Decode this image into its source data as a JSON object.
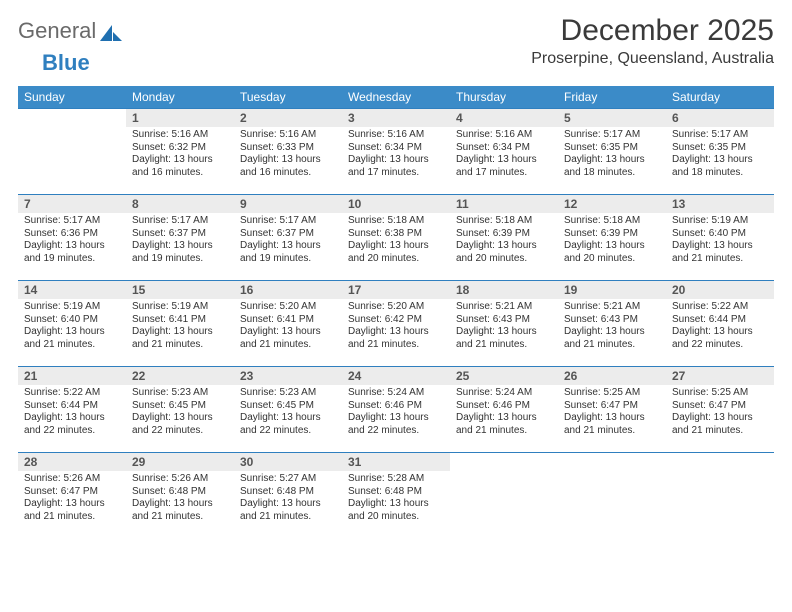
{
  "brand": {
    "general": "General",
    "blue": "Blue"
  },
  "title": {
    "main": "December 2025",
    "sub": "Proserpine, Queensland, Australia"
  },
  "colors": {
    "header_bg": "#3b8bc8",
    "header_text": "#ffffff",
    "cell_border": "#2f7fbf",
    "daynum_bg": "#ececec",
    "text": "#333333",
    "logo_gray": "#6a6a6a",
    "logo_blue": "#2f7fbf",
    "page_bg": "#ffffff"
  },
  "weekdays": [
    "Sunday",
    "Monday",
    "Tuesday",
    "Wednesday",
    "Thursday",
    "Friday",
    "Saturday"
  ],
  "start_offset": 1,
  "cell_text_fontsize": 10,
  "header_fontsize": 12,
  "daynum_fontsize": 12,
  "days": [
    {
      "n": 1,
      "sunrise": "5:16 AM",
      "sunset": "6:32 PM",
      "daylight": "13 hours and 16 minutes."
    },
    {
      "n": 2,
      "sunrise": "5:16 AM",
      "sunset": "6:33 PM",
      "daylight": "13 hours and 16 minutes."
    },
    {
      "n": 3,
      "sunrise": "5:16 AM",
      "sunset": "6:34 PM",
      "daylight": "13 hours and 17 minutes."
    },
    {
      "n": 4,
      "sunrise": "5:16 AM",
      "sunset": "6:34 PM",
      "daylight": "13 hours and 17 minutes."
    },
    {
      "n": 5,
      "sunrise": "5:17 AM",
      "sunset": "6:35 PM",
      "daylight": "13 hours and 18 minutes."
    },
    {
      "n": 6,
      "sunrise": "5:17 AM",
      "sunset": "6:35 PM",
      "daylight": "13 hours and 18 minutes."
    },
    {
      "n": 7,
      "sunrise": "5:17 AM",
      "sunset": "6:36 PM",
      "daylight": "13 hours and 19 minutes."
    },
    {
      "n": 8,
      "sunrise": "5:17 AM",
      "sunset": "6:37 PM",
      "daylight": "13 hours and 19 minutes."
    },
    {
      "n": 9,
      "sunrise": "5:17 AM",
      "sunset": "6:37 PM",
      "daylight": "13 hours and 19 minutes."
    },
    {
      "n": 10,
      "sunrise": "5:18 AM",
      "sunset": "6:38 PM",
      "daylight": "13 hours and 20 minutes."
    },
    {
      "n": 11,
      "sunrise": "5:18 AM",
      "sunset": "6:39 PM",
      "daylight": "13 hours and 20 minutes."
    },
    {
      "n": 12,
      "sunrise": "5:18 AM",
      "sunset": "6:39 PM",
      "daylight": "13 hours and 20 minutes."
    },
    {
      "n": 13,
      "sunrise": "5:19 AM",
      "sunset": "6:40 PM",
      "daylight": "13 hours and 21 minutes."
    },
    {
      "n": 14,
      "sunrise": "5:19 AM",
      "sunset": "6:40 PM",
      "daylight": "13 hours and 21 minutes."
    },
    {
      "n": 15,
      "sunrise": "5:19 AM",
      "sunset": "6:41 PM",
      "daylight": "13 hours and 21 minutes."
    },
    {
      "n": 16,
      "sunrise": "5:20 AM",
      "sunset": "6:41 PM",
      "daylight": "13 hours and 21 minutes."
    },
    {
      "n": 17,
      "sunrise": "5:20 AM",
      "sunset": "6:42 PM",
      "daylight": "13 hours and 21 minutes."
    },
    {
      "n": 18,
      "sunrise": "5:21 AM",
      "sunset": "6:43 PM",
      "daylight": "13 hours and 21 minutes."
    },
    {
      "n": 19,
      "sunrise": "5:21 AM",
      "sunset": "6:43 PM",
      "daylight": "13 hours and 21 minutes."
    },
    {
      "n": 20,
      "sunrise": "5:22 AM",
      "sunset": "6:44 PM",
      "daylight": "13 hours and 22 minutes."
    },
    {
      "n": 21,
      "sunrise": "5:22 AM",
      "sunset": "6:44 PM",
      "daylight": "13 hours and 22 minutes."
    },
    {
      "n": 22,
      "sunrise": "5:23 AM",
      "sunset": "6:45 PM",
      "daylight": "13 hours and 22 minutes."
    },
    {
      "n": 23,
      "sunrise": "5:23 AM",
      "sunset": "6:45 PM",
      "daylight": "13 hours and 22 minutes."
    },
    {
      "n": 24,
      "sunrise": "5:24 AM",
      "sunset": "6:46 PM",
      "daylight": "13 hours and 22 minutes."
    },
    {
      "n": 25,
      "sunrise": "5:24 AM",
      "sunset": "6:46 PM",
      "daylight": "13 hours and 21 minutes."
    },
    {
      "n": 26,
      "sunrise": "5:25 AM",
      "sunset": "6:47 PM",
      "daylight": "13 hours and 21 minutes."
    },
    {
      "n": 27,
      "sunrise": "5:25 AM",
      "sunset": "6:47 PM",
      "daylight": "13 hours and 21 minutes."
    },
    {
      "n": 28,
      "sunrise": "5:26 AM",
      "sunset": "6:47 PM",
      "daylight": "13 hours and 21 minutes."
    },
    {
      "n": 29,
      "sunrise": "5:26 AM",
      "sunset": "6:48 PM",
      "daylight": "13 hours and 21 minutes."
    },
    {
      "n": 30,
      "sunrise": "5:27 AM",
      "sunset": "6:48 PM",
      "daylight": "13 hours and 21 minutes."
    },
    {
      "n": 31,
      "sunrise": "5:28 AM",
      "sunset": "6:48 PM",
      "daylight": "13 hours and 20 minutes."
    }
  ],
  "labels": {
    "sunrise": "Sunrise:",
    "sunset": "Sunset:",
    "daylight": "Daylight:"
  }
}
